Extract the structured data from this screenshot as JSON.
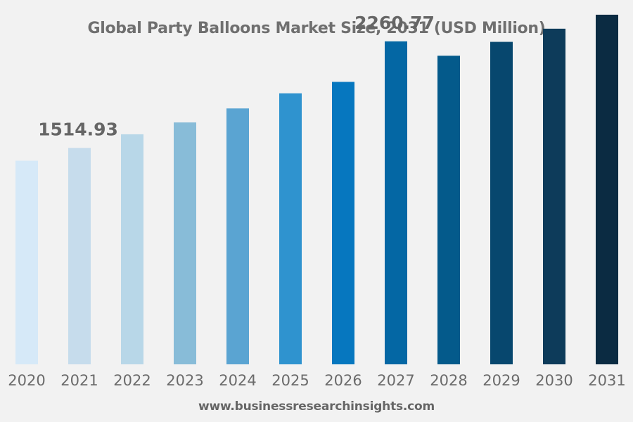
{
  "chart_data": {
    "type": "bar",
    "title": "Global Party Balloons Market Size, 2031 (USD Million)",
    "xlabel": "",
    "ylabel": "",
    "categories": [
      "2020",
      "2021",
      "2022",
      "2023",
      "2024",
      "2025",
      "2026",
      "2027",
      "2028",
      "2029",
      "2030",
      "2031"
    ],
    "values": [
      1425,
      1514.93,
      1610,
      1693,
      1791,
      1897,
      1977,
      2260.77,
      2160,
      2257,
      2349,
      2447
    ],
    "bar_colors": [
      "#d6e9f8",
      "#c6dcec",
      "#b8d7e8",
      "#88bcd8",
      "#5aa4d2",
      "#2f93cf",
      "#0677bf",
      "#0467a4",
      "#045a8b",
      "#07476e",
      "#0d3b5a",
      "#0b2b42"
    ],
    "data_labels": [
      {
        "category": "2021",
        "text": "1514.93"
      },
      {
        "category": "2027",
        "text": "2260.77"
      }
    ],
    "ylim": [
      0,
      2550
    ],
    "grid": false,
    "legend": "none"
  },
  "source": "www.businessresearchinsights.com"
}
